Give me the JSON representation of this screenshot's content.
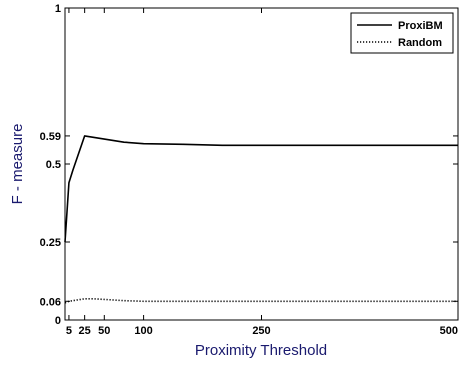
{
  "chart_data": {
    "type": "line",
    "title": "",
    "xlabel": "Proximity Threshold",
    "ylabel": "F - measure",
    "xlim": [
      0,
      500
    ],
    "ylim": [
      0,
      1
    ],
    "xticks": [
      5,
      25,
      50,
      100,
      250,
      500
    ],
    "xtick_labels": [
      "5",
      "25",
      "50",
      "100",
      "250",
      "500"
    ],
    "yticks": [
      0,
      0.06,
      0.25,
      0.5,
      0.59,
      1
    ],
    "ytick_labels": [
      "0",
      "0.06",
      "0.25",
      "0.5",
      "0.59",
      "1"
    ],
    "grid": false,
    "legend_position": "top-right",
    "series": [
      {
        "name": "ProxiBM",
        "style": "solid",
        "color": "#000000",
        "x": [
          0,
          5,
          10,
          25,
          50,
          75,
          100,
          150,
          200,
          250,
          300,
          400,
          500
        ],
        "y": [
          0.25,
          0.44,
          0.48,
          0.59,
          0.58,
          0.57,
          0.565,
          0.563,
          0.56,
          0.56,
          0.56,
          0.56,
          0.56
        ]
      },
      {
        "name": "Random",
        "style": "dotted",
        "color": "#000000",
        "x": [
          0,
          5,
          10,
          25,
          35,
          50,
          75,
          100,
          150,
          250,
          500
        ],
        "y": [
          0.055,
          0.06,
          0.062,
          0.068,
          0.068,
          0.066,
          0.062,
          0.06,
          0.06,
          0.06,
          0.06
        ]
      }
    ]
  }
}
